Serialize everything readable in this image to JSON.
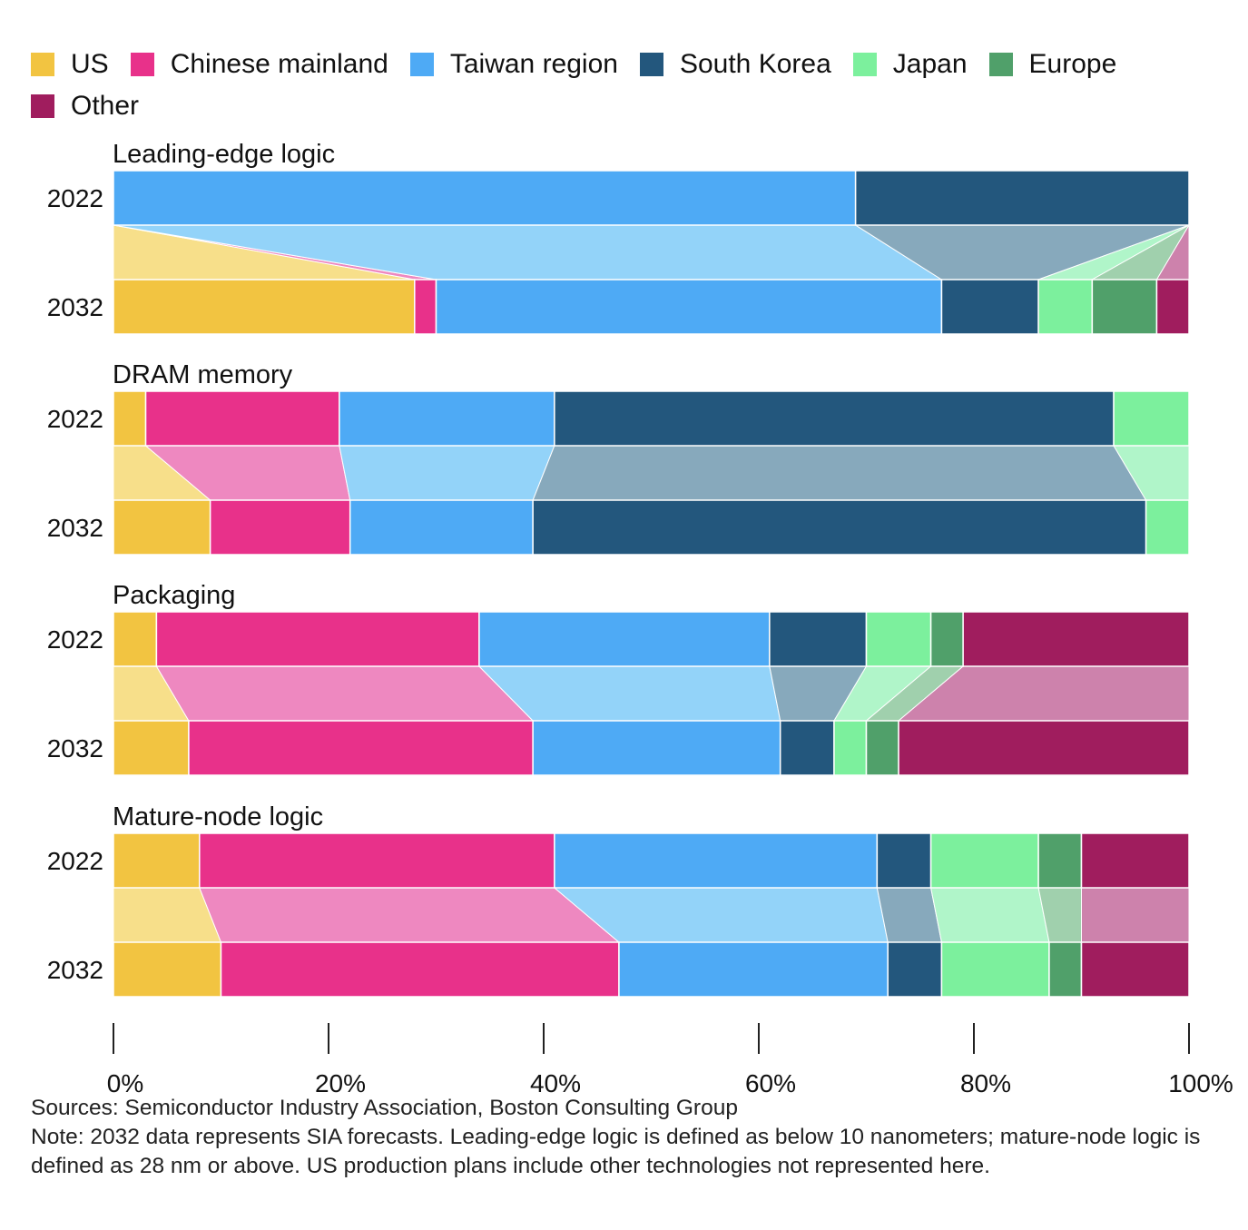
{
  "chart_data": {
    "type": "bar",
    "orientation": "horizontal-stacked-100",
    "legend_position": "top-left",
    "grid": false,
    "xlim": [
      0,
      100
    ],
    "x_ticks": [
      "0%",
      "20%",
      "40%",
      "60%",
      "80%",
      "100%"
    ],
    "series_names": [
      "US",
      "Chinese mainland",
      "Taiwan region",
      "South Korea",
      "Japan",
      "Europe",
      "Other"
    ],
    "colors": [
      "#f2c441",
      "#e8318a",
      "#4eaaf5",
      "#23577d",
      "#7cf09d",
      "#50a06a",
      "#a01d5e"
    ],
    "connector_colors": [
      "#f7df8a",
      "#ee88c0",
      "#93d3f9",
      "#87a9bc",
      "#b0f5c9",
      "#a0d0ad",
      "#cd82ac"
    ],
    "panels": [
      {
        "title": "Leading-edge logic",
        "rows": [
          {
            "year": "2022",
            "values": [
              0,
              0,
              69,
              31,
              0,
              0,
              0
            ]
          },
          {
            "year": "2032",
            "values": [
              28,
              2,
              47,
              9,
              5,
              6,
              3
            ]
          }
        ]
      },
      {
        "title": "DRAM memory",
        "rows": [
          {
            "year": "2022",
            "values": [
              3,
              18,
              20,
              52,
              7,
              0,
              0
            ]
          },
          {
            "year": "2032",
            "values": [
              9,
              13,
              17,
              57,
              4,
              0,
              0
            ]
          }
        ]
      },
      {
        "title": "Packaging",
        "rows": [
          {
            "year": "2022",
            "values": [
              4,
              30,
              27,
              9,
              6,
              3,
              21
            ]
          },
          {
            "year": "2032",
            "values": [
              7,
              32,
              23,
              5,
              3,
              3,
              27
            ]
          }
        ]
      },
      {
        "title": "Mature-node logic",
        "rows": [
          {
            "year": "2022",
            "values": [
              8,
              33,
              30,
              5,
              10,
              4,
              10
            ]
          },
          {
            "year": "2032",
            "values": [
              10,
              37,
              25,
              5,
              10,
              3,
              10
            ]
          }
        ]
      }
    ]
  },
  "footer": {
    "sources": "Sources: Semiconductor Industry Association, Boston Consulting Group",
    "note": "Note: 2032 data represents SIA forecasts. Leading-edge logic is defined as below 10 nanometers; mature-node logic is defined as 28 nm or above. US production plans include other technologies not represented here."
  }
}
